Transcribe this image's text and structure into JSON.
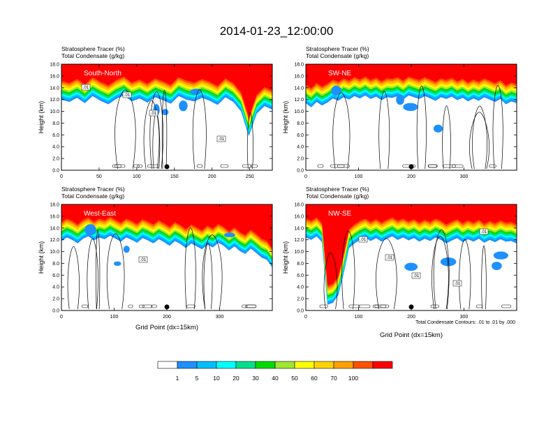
{
  "figure": {
    "title": "2014-01-23_12:00:00",
    "footnote": "Total Condensate Contours: .01 to .01 by .000"
  },
  "colorbar": {
    "colors": [
      "#ffffff",
      "#1e90ff",
      "#00bfff",
      "#00ffff",
      "#00e08c",
      "#00dc00",
      "#a0e632",
      "#ffff00",
      "#ffd200",
      "#ffa000",
      "#ff5000",
      "#ff0000"
    ],
    "labels": [
      "1",
      "5",
      "10",
      "20",
      "30",
      "40",
      "50",
      "60",
      "70",
      "100"
    ]
  },
  "chart_data": [
    {
      "type": "heatmap",
      "panel_label": "South-North",
      "subtitle_lines": [
        "Stratosphere Tracer   (%)",
        "Total Condensate   (g/kg)"
      ],
      "ylabel": "Height (km)",
      "xlabel": "",
      "xlim": [
        0,
        280
      ],
      "ylim": [
        0,
        18
      ],
      "x_ticks": [
        "0",
        "50",
        "100",
        "150",
        "200",
        "250"
      ],
      "x_tick_values": [
        0,
        50,
        100,
        150,
        200,
        250
      ],
      "y_ticks": [
        "0.0",
        "2.0",
        "4.0",
        "6.0",
        "8.0",
        "10.0",
        "12.0",
        "14.0",
        "16.0",
        "18.0"
      ],
      "contour_labels": [
        ".01",
        ".01",
        ".01",
        ".01"
      ],
      "marker_x": 140,
      "tropopause_km": [
        15.2,
        14.8,
        15.5,
        14.6,
        15.8,
        15.0,
        14.4,
        15.3,
        15.9,
        14.9,
        15.4,
        14.7,
        15.6,
        15.1,
        14.5,
        15.8,
        15.2,
        14.9,
        15.5,
        15.0,
        14.3,
        15.6,
        14.8,
        13.2,
        9.0,
        12.8,
        14.1,
        13.5
      ]
    },
    {
      "type": "heatmap",
      "panel_label": "SW-NE",
      "subtitle_lines": [
        "Stratosphere Tracer   (%)",
        "Total Condensate   (g/kg)"
      ],
      "ylabel": "Height (km)",
      "xlabel": "",
      "xlim": [
        0,
        400
      ],
      "ylim": [
        0,
        18
      ],
      "x_ticks": [
        "0",
        "100",
        "200",
        "300"
      ],
      "x_tick_values": [
        0,
        100,
        200,
        300
      ],
      "y_ticks": [
        "0.0",
        "2.0",
        "4.0",
        "6.0",
        "8.0",
        "10.0",
        "12.0",
        "14.0",
        "16.0",
        "18.0"
      ],
      "contour_labels": [],
      "marker_x": 200,
      "tropopause_km": [
        14.6,
        13.9,
        14.8,
        14.2,
        14.7,
        15.4,
        15.0,
        15.6,
        15.2,
        15.8,
        15.4,
        15.9,
        15.3,
        15.7,
        15.1,
        15.6,
        15.5,
        15.8,
        15.2,
        15.9,
        15.6,
        15.3,
        15.8,
        15.4,
        15.0,
        15.6,
        15.3,
        15.7,
        15.1,
        15.5,
        14.9,
        15.4,
        15.0,
        15.6,
        15.2,
        14.8,
        15.3,
        14.4,
        14.9,
        14.6
      ]
    },
    {
      "type": "heatmap",
      "panel_label": "West-East",
      "subtitle_lines": [
        "Stratosphere Tracer   (%)",
        "Total Condensate   (g/kg)"
      ],
      "ylabel": "Height (km)",
      "xlabel": "Grid Point  (dx=15km)",
      "xlim": [
        0,
        400
      ],
      "ylim": [
        0,
        18
      ],
      "x_ticks": [
        "0",
        "100",
        "200",
        "300"
      ],
      "x_tick_values": [
        0,
        100,
        200,
        300
      ],
      "y_ticks": [
        "0.0",
        "2.0",
        "4.0",
        "6.0",
        "8.0",
        "10.0",
        "12.0",
        "14.0",
        "16.0",
        "18.0"
      ],
      "contour_labels": [
        ".01"
      ],
      "marker_x": 200,
      "tropopause_km": [
        15.0,
        15.6,
        15.2,
        14.6,
        15.4,
        15.8,
        15.1,
        15.6,
        15.3,
        15.9,
        15.4,
        14.9,
        15.6,
        15.2,
        14.7,
        15.5,
        15.1,
        14.6,
        15.3,
        14.8,
        14.2,
        15.0,
        14.5,
        13.8,
        14.6,
        14.1,
        13.6,
        14.4,
        13.9,
        14.7,
        14.2,
        13.4,
        14.1,
        13.3,
        12.8,
        13.7,
        13.0,
        12.2,
        11.8,
        10.5
      ]
    },
    {
      "type": "heatmap",
      "panel_label": "NW-SE",
      "subtitle_lines": [
        "Stratosphere Tracer   (%)",
        "Total Condensate   (g/kg)"
      ],
      "ylabel": "Height (km)",
      "xlabel": "Grid Point  (dx=15km)",
      "xlim": [
        0,
        400
      ],
      "ylim": [
        0,
        18
      ],
      "x_ticks": [
        "0",
        "100",
        "200",
        "300"
      ],
      "x_tick_values": [
        0,
        100,
        200,
        300
      ],
      "y_ticks": [
        "0.0",
        "2.0",
        "4.0",
        "6.0",
        "8.0",
        "10.0",
        "12.0",
        "14.0",
        "16.0",
        "18.0"
      ],
      "contour_labels": [
        ".01",
        ".01",
        ".01",
        ".01",
        ".01"
      ],
      "marker_x": 200,
      "tropopause_km": [
        15.6,
        15.2,
        15.8,
        14.8,
        4.2,
        4.5,
        5.8,
        9.5,
        13.8,
        14.6,
        15.2,
        15.6,
        15.0,
        15.5,
        14.9,
        15.4,
        15.8,
        15.2,
        15.6,
        15.1,
        15.5,
        14.9,
        15.4,
        15.0,
        15.6,
        15.2,
        14.6,
        15.1,
        15.5,
        14.8,
        15.3,
        14.9,
        15.4,
        14.7,
        15.2,
        14.8,
        15.3,
        14.9,
        15.0,
        14.6
      ]
    }
  ]
}
